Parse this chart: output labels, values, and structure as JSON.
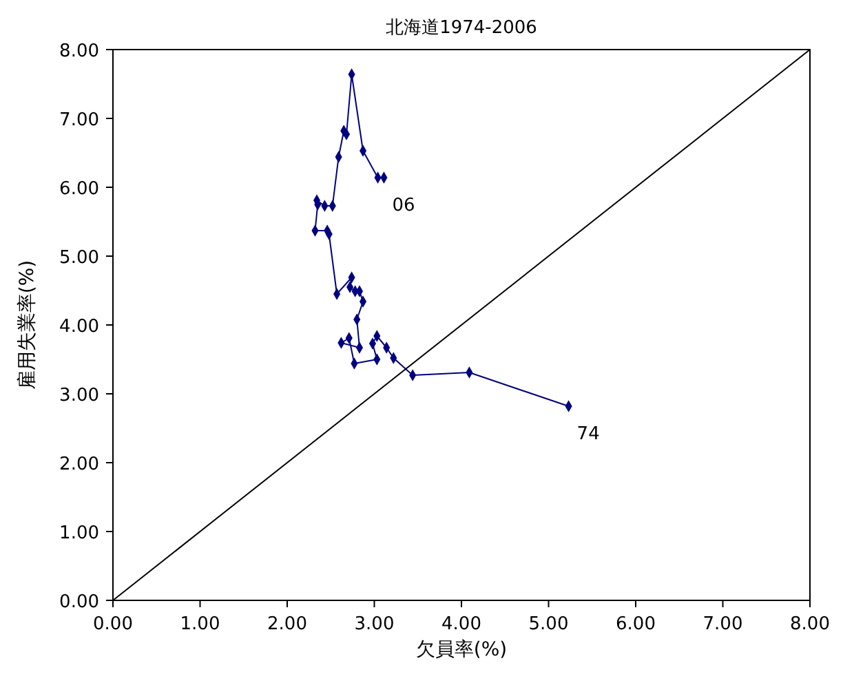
{
  "chart_data": {
    "type": "line",
    "title": "北海道1974-2006",
    "xlabel": "欠員率(%)",
    "ylabel": "雇用失業率(%)",
    "xlim": [
      0,
      8
    ],
    "ylim": [
      0,
      8
    ],
    "xticks": [
      {
        "value": 0,
        "label": "0.00"
      },
      {
        "value": 1,
        "label": "1.00"
      },
      {
        "value": 2,
        "label": "2.00"
      },
      {
        "value": 3,
        "label": "3.00"
      },
      {
        "value": 4,
        "label": "4.00"
      },
      {
        "value": 5,
        "label": "5.00"
      },
      {
        "value": 6,
        "label": "6.00"
      },
      {
        "value": 7,
        "label": "7.00"
      },
      {
        "value": 8,
        "label": "8.00"
      }
    ],
    "yticks": [
      {
        "value": 0,
        "label": "0.00"
      },
      {
        "value": 1,
        "label": "1.00"
      },
      {
        "value": 2,
        "label": "2.00"
      },
      {
        "value": 3,
        "label": "3.00"
      },
      {
        "value": 4,
        "label": "4.00"
      },
      {
        "value": 5,
        "label": "5.00"
      },
      {
        "value": 6,
        "label": "6.00"
      },
      {
        "value": 7,
        "label": "7.00"
      },
      {
        "value": 8,
        "label": "8.00"
      }
    ],
    "grid": false,
    "series": [
      {
        "color": "#000080",
        "marker": "diamond",
        "x": [
          5.23,
          4.09,
          3.44,
          3.22,
          3.14,
          3.03,
          2.98,
          3.03,
          2.77,
          2.71,
          2.62,
          2.83,
          2.8,
          2.87,
          2.83,
          2.78,
          2.72,
          2.74,
          2.57,
          2.48,
          2.46,
          2.32,
          2.35,
          2.34,
          2.43,
          2.52,
          2.59,
          2.65,
          2.68,
          2.74,
          2.87,
          3.04,
          3.11
        ],
        "values": [
          2.82,
          3.31,
          3.27,
          3.52,
          3.67,
          3.84,
          3.73,
          3.5,
          3.44,
          3.81,
          3.74,
          3.67,
          4.08,
          4.34,
          4.49,
          4.49,
          4.55,
          4.69,
          4.45,
          5.32,
          5.37,
          5.37,
          5.75,
          5.81,
          5.73,
          5.73,
          6.44,
          6.82,
          6.77,
          7.64,
          6.53,
          6.14,
          6.14
        ]
      },
      {
        "color": "#000000",
        "marker": "none",
        "x": [
          0,
          8
        ],
        "values": [
          0,
          8
        ]
      }
    ],
    "annotations": [
      {
        "text": "74",
        "x": 5.23,
        "y": 2.82
      },
      {
        "text": "06",
        "x": 3.11,
        "y": 6.14
      }
    ]
  }
}
